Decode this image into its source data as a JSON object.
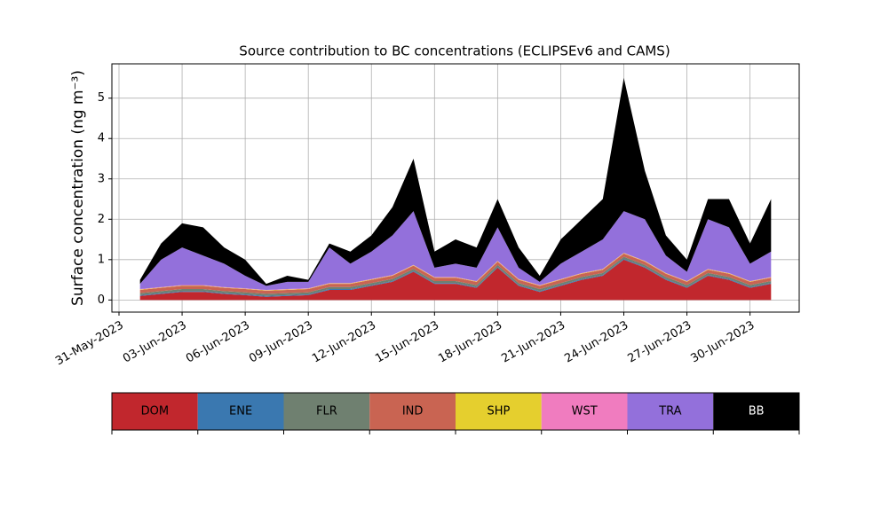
{
  "chart_data": {
    "type": "stacked_area",
    "title": "Source contribution to BC concentrations (ECLIPSEv6 and CAMS)",
    "y_label": "Surface concentration (ng m⁻³)",
    "x": [
      "2023-06-01",
      "2023-06-02",
      "2023-06-03",
      "2023-06-04",
      "2023-06-05",
      "2023-06-06",
      "2023-06-07",
      "2023-06-08",
      "2023-06-09",
      "2023-06-10",
      "2023-06-11",
      "2023-06-12",
      "2023-06-13",
      "2023-06-14",
      "2023-06-15",
      "2023-06-16",
      "2023-06-17",
      "2023-06-18",
      "2023-06-19",
      "2023-06-20",
      "2023-06-21",
      "2023-06-22",
      "2023-06-23",
      "2023-06-24",
      "2023-06-25",
      "2023-06-26",
      "2023-06-27",
      "2023-06-28",
      "2023-06-29",
      "2023-06-30",
      "2023-07-01"
    ],
    "series": [
      {
        "name": "DOM",
        "color": "#c1272d",
        "values": [
          0.1,
          0.15,
          0.2,
          0.2,
          0.15,
          0.12,
          0.08,
          0.1,
          0.12,
          0.25,
          0.25,
          0.35,
          0.45,
          0.7,
          0.4,
          0.4,
          0.3,
          0.8,
          0.35,
          0.2,
          0.35,
          0.5,
          0.6,
          1.0,
          0.8,
          0.5,
          0.3,
          0.6,
          0.5,
          0.3,
          0.4
        ]
      },
      {
        "name": "ENE",
        "color": "#3a78b0",
        "values": [
          0.02,
          0.02,
          0.02,
          0.02,
          0.02,
          0.02,
          0.02,
          0.02,
          0.02,
          0.02,
          0.02,
          0.02,
          0.02,
          0.02,
          0.02,
          0.02,
          0.02,
          0.02,
          0.02,
          0.02,
          0.02,
          0.02,
          0.02,
          0.02,
          0.02,
          0.02,
          0.02,
          0.02,
          0.02,
          0.02,
          0.02
        ]
      },
      {
        "name": "FLR",
        "color": "#6f8070",
        "values": [
          0.05,
          0.05,
          0.05,
          0.05,
          0.05,
          0.05,
          0.05,
          0.05,
          0.05,
          0.05,
          0.05,
          0.05,
          0.05,
          0.05,
          0.05,
          0.05,
          0.05,
          0.05,
          0.05,
          0.05,
          0.05,
          0.05,
          0.05,
          0.05,
          0.05,
          0.05,
          0.05,
          0.05,
          0.05,
          0.05,
          0.05
        ]
      },
      {
        "name": "IND",
        "color": "#c96452",
        "values": [
          0.08,
          0.08,
          0.08,
          0.08,
          0.08,
          0.08,
          0.08,
          0.08,
          0.08,
          0.08,
          0.08,
          0.08,
          0.08,
          0.08,
          0.08,
          0.08,
          0.08,
          0.08,
          0.08,
          0.08,
          0.08,
          0.08,
          0.08,
          0.08,
          0.08,
          0.08,
          0.08,
          0.08,
          0.08,
          0.08,
          0.08
        ]
      },
      {
        "name": "SHP",
        "color": "#e5cf2e",
        "values": [
          0.01,
          0.01,
          0.01,
          0.01,
          0.01,
          0.01,
          0.01,
          0.01,
          0.01,
          0.01,
          0.01,
          0.01,
          0.01,
          0.01,
          0.01,
          0.01,
          0.01,
          0.01,
          0.01,
          0.01,
          0.01,
          0.01,
          0.01,
          0.01,
          0.01,
          0.01,
          0.01,
          0.01,
          0.01,
          0.01,
          0.01
        ]
      },
      {
        "name": "WST",
        "color": "#f07cbf",
        "values": [
          0.01,
          0.01,
          0.01,
          0.01,
          0.01,
          0.01,
          0.01,
          0.01,
          0.01,
          0.01,
          0.01,
          0.01,
          0.01,
          0.01,
          0.01,
          0.01,
          0.01,
          0.01,
          0.01,
          0.01,
          0.01,
          0.01,
          0.01,
          0.01,
          0.01,
          0.01,
          0.01,
          0.01,
          0.01,
          0.01,
          0.01
        ]
      },
      {
        "name": "TRA",
        "color": "#9370db",
        "values": [
          0.13,
          0.68,
          0.93,
          0.73,
          0.58,
          0.31,
          0.1,
          0.18,
          0.16,
          0.88,
          0.48,
          0.68,
          0.98,
          1.33,
          0.23,
          0.33,
          0.33,
          0.83,
          0.28,
          0.08,
          0.38,
          0.53,
          0.73,
          1.03,
          1.03,
          0.43,
          0.23,
          1.23,
          1.13,
          0.43,
          0.63
        ]
      },
      {
        "name": "BB",
        "color": "#000000",
        "values": [
          0.1,
          0.4,
          0.6,
          0.7,
          0.4,
          0.4,
          0.05,
          0.15,
          0.05,
          0.1,
          0.3,
          0.4,
          0.7,
          1.3,
          0.4,
          0.6,
          0.5,
          0.7,
          0.5,
          0.15,
          0.6,
          0.8,
          1.0,
          3.3,
          1.2,
          0.5,
          0.3,
          0.5,
          0.7,
          0.5,
          1.3
        ]
      }
    ],
    "xlim": [
      "2023-05-31",
      "2023-07-02"
    ],
    "xticks": [
      {
        "value": "2023-05-31",
        "label": "31-May-2023"
      },
      {
        "value": "2023-06-03",
        "label": "03-Jun-2023"
      },
      {
        "value": "2023-06-06",
        "label": "06-Jun-2023"
      },
      {
        "value": "2023-06-09",
        "label": "09-Jun-2023"
      },
      {
        "value": "2023-06-12",
        "label": "12-Jun-2023"
      },
      {
        "value": "2023-06-15",
        "label": "15-Jun-2023"
      },
      {
        "value": "2023-06-18",
        "label": "18-Jun-2023"
      },
      {
        "value": "2023-06-21",
        "label": "21-Jun-2023"
      },
      {
        "value": "2023-06-24",
        "label": "24-Jun-2023"
      },
      {
        "value": "2023-06-27",
        "label": "27-Jun-2023"
      },
      {
        "value": "2023-06-30",
        "label": "30-Jun-2023"
      }
    ],
    "ylim": [
      -0.3,
      5.85
    ],
    "yticks": [
      0,
      1,
      2,
      3,
      4,
      5
    ],
    "grid": true
  }
}
